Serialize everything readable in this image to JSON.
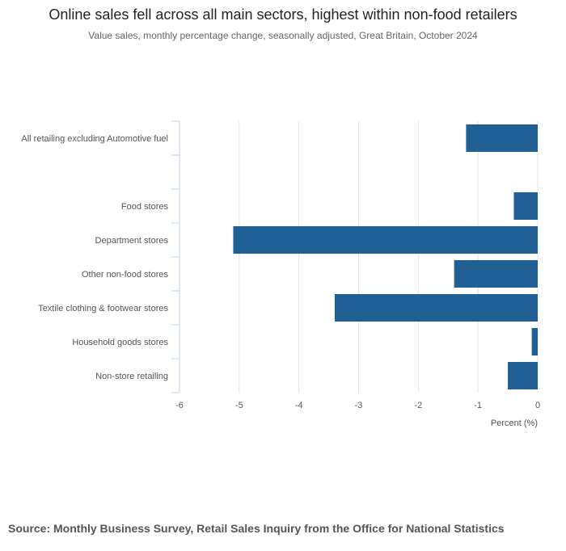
{
  "title": "Online sales fell across all main sectors, highest within non-food retailers",
  "subtitle": "Value sales, monthly percentage change, seasonally adjusted, Great Britain, October 2024",
  "source": "Source: Monthly Business Survey, Retail Sales Inquiry from the Office for National Statistics",
  "colors": {
    "bar": "#206095",
    "grid": "#e6e6e6",
    "axis": "#c3d4e6",
    "label": "#555555"
  },
  "chart_data": {
    "type": "bar",
    "orientation": "horizontal",
    "categories": [
      "All retailing excluding Automotive fuel",
      "",
      "Food stores",
      "Department stores",
      "Other non-food stores",
      "Textile clothing & footwear stores",
      "Household goods stores",
      "Non-store retailing"
    ],
    "values": [
      -1.2,
      null,
      -0.4,
      -5.1,
      -1.4,
      -3.4,
      -0.1,
      -0.5
    ],
    "xlabel": "Percent (%)",
    "ylabel": "",
    "xlim": [
      -6,
      0
    ],
    "xticks": [
      "-6",
      "-5",
      "-4",
      "-3",
      "-2",
      "-1",
      "0"
    ],
    "grid": true,
    "legend": "none"
  }
}
